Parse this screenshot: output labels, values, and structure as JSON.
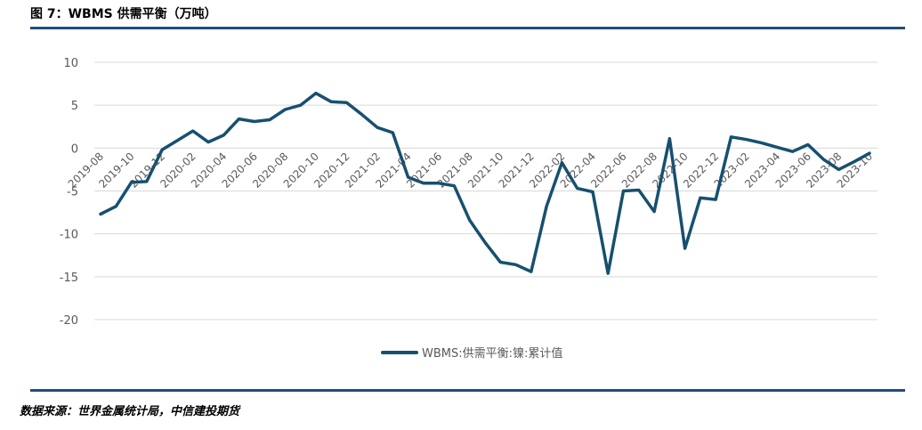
{
  "figure": {
    "title": "图 7：WBMS 供需平衡（万吨）",
    "source": "数据来源：世界金属统计局，中信建投期货"
  },
  "colors": {
    "series": "#17506f",
    "grid": "#d9d9d9",
    "rule": "#1f4e79"
  },
  "chart_data": {
    "type": "line",
    "title": "",
    "xlabel": "",
    "ylabel": "",
    "ylim": [
      -20,
      10
    ],
    "yticks": [
      10,
      5,
      0,
      -5,
      -10,
      -15,
      -20
    ],
    "grid": true,
    "legend_position": "bottom",
    "x": [
      "2019-08",
      "2019-09",
      "2019-10",
      "2019-11",
      "2019-12",
      "2020-01",
      "2020-02",
      "2020-03",
      "2020-04",
      "2020-05",
      "2020-06",
      "2020-07",
      "2020-08",
      "2020-09",
      "2020-10",
      "2020-11",
      "2020-12",
      "2021-01",
      "2021-02",
      "2021-03",
      "2021-04",
      "2021-05",
      "2021-06",
      "2021-07",
      "2021-08",
      "2021-09",
      "2021-10",
      "2021-11",
      "2021-12",
      "2022-01",
      "2022-02",
      "2022-03",
      "2022-04",
      "2022-05",
      "2022-06",
      "2022-07",
      "2022-08",
      "2022-09",
      "2022-10",
      "2022-11",
      "2022-12",
      "2023-01",
      "2023-02",
      "2023-03",
      "2023-04",
      "2023-05",
      "2023-06",
      "2023-07",
      "2023-08",
      "2023-09",
      "2023-10"
    ],
    "xtick_labels": [
      "2019-08",
      "2019-10",
      "2019-12",
      "2020-02",
      "2020-04",
      "2020-06",
      "2020-08",
      "2020-10",
      "2020-12",
      "2021-02",
      "2021-04",
      "2021-06",
      "2021-08",
      "2021-10",
      "2021-12",
      "2022-02",
      "2022-04",
      "2022-06",
      "2022-08",
      "2022-10",
      "2022-12",
      "2023-02",
      "2023-04",
      "2023-06",
      "2023-08",
      "2023-10"
    ],
    "series": [
      {
        "name": "WBMS:供需平衡:镍:累计值",
        "values": [
          -7.7,
          -6.8,
          -4.0,
          -3.9,
          -0.2,
          0.9,
          2.0,
          0.7,
          1.5,
          3.4,
          3.1,
          3.3,
          4.5,
          5.0,
          6.4,
          5.4,
          5.3,
          3.9,
          2.4,
          1.8,
          -3.4,
          -4.1,
          -4.1,
          -4.4,
          -8.4,
          -11.0,
          -13.3,
          -13.6,
          -14.4,
          -6.8,
          -1.7,
          -4.7,
          -5.1,
          -14.6,
          -5.0,
          -4.9,
          -7.4,
          1.1,
          -11.7,
          -5.8,
          -6.0,
          1.3,
          1.0,
          0.6,
          0.1,
          -0.4,
          0.4,
          -1.3,
          -2.5,
          -1.6,
          -0.6
        ]
      }
    ]
  }
}
